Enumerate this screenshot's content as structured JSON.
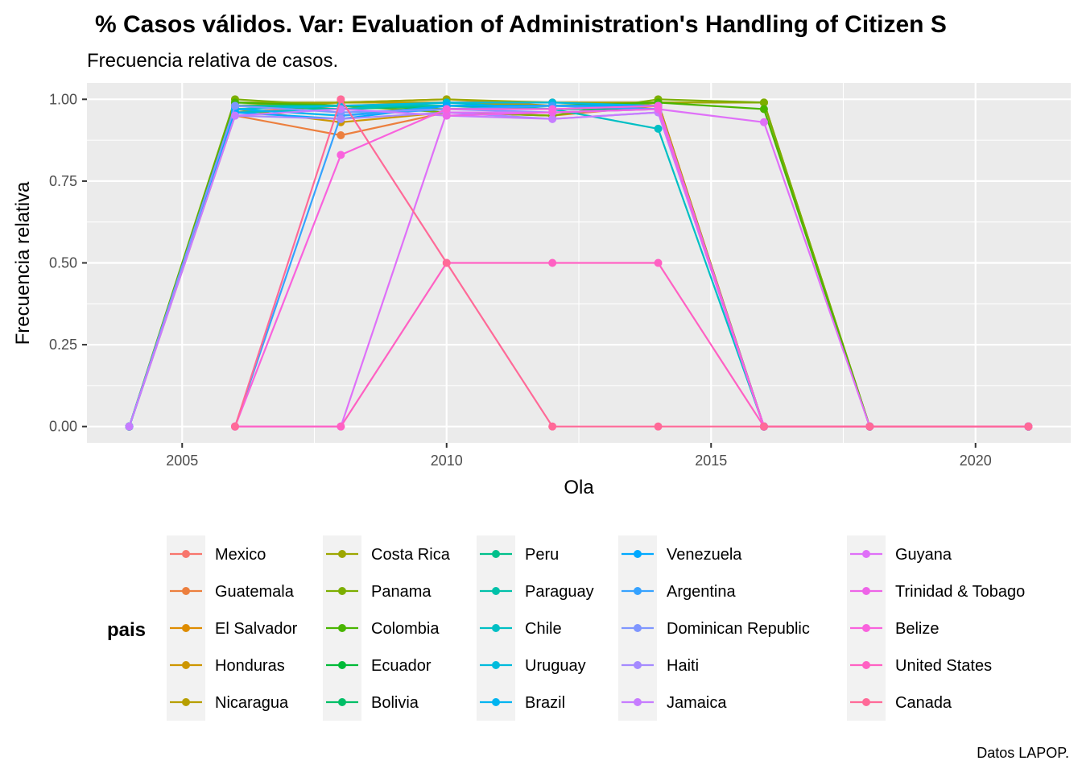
{
  "chart_data": {
    "type": "line",
    "title": "% Casos válidos. Var: Evaluation of Administration's Handling of Citizen S",
    "subtitle": "Frecuencia relativa de casos.",
    "xlabel": "Ola",
    "ylabel": "Frecuencia relativa",
    "caption": "Datos LAPOP.",
    "xlim": [
      2003.2,
      2021.8
    ],
    "ylim": [
      -0.05,
      1.05
    ],
    "x_ticks": [
      2005,
      2010,
      2015,
      2020
    ],
    "x_tick_labels": [
      "2005",
      "2010",
      "2015",
      "2020"
    ],
    "y_ticks": [
      0,
      0.25,
      0.5,
      0.75,
      1.0
    ],
    "y_tick_labels": [
      "0.00",
      "0.25",
      "0.50",
      "0.75",
      "1.00"
    ],
    "grid": true,
    "legend": {
      "title": "pais",
      "position": "bottom",
      "columns": 5,
      "rows": 5
    },
    "series": [
      {
        "name": "Mexico",
        "color": "#F8766D",
        "x": [
          2004,
          2006,
          2008,
          2010,
          2012,
          2014,
          2016,
          2018,
          2021
        ],
        "y": [
          0,
          0.96,
          0.98,
          0.99,
          0.99,
          0.99,
          0,
          0,
          0
        ]
      },
      {
        "name": "Guatemala",
        "color": "#EC7F3E",
        "x": [
          2004,
          2006,
          2008,
          2010,
          2012,
          2014,
          2016,
          2018,
          2021
        ],
        "y": [
          0,
          0.95,
          0.89,
          0.96,
          0.95,
          0.98,
          0,
          0,
          0
        ]
      },
      {
        "name": "El Salvador",
        "color": "#DE8C00",
        "x": [
          2004,
          2006,
          2008,
          2010,
          2012,
          2014,
          2016,
          2018,
          2021
        ],
        "y": [
          0,
          0.98,
          0.99,
          1.0,
          0.98,
          0.99,
          0,
          0,
          0
        ]
      },
      {
        "name": "Honduras",
        "color": "#CD9600",
        "x": [
          2004,
          2006,
          2008,
          2010,
          2012,
          2014,
          2016,
          2018,
          2021
        ],
        "y": [
          0,
          0.97,
          0.93,
          0.96,
          0.95,
          0.99,
          0,
          0,
          0
        ]
      },
      {
        "name": "Nicaragua",
        "color": "#B79F00",
        "x": [
          2004,
          2006,
          2008,
          2010,
          2012,
          2014,
          2016,
          2018,
          2021
        ],
        "y": [
          0,
          0.98,
          0.99,
          0.99,
          0.98,
          0.99,
          0.99,
          0,
          0
        ]
      },
      {
        "name": "Costa Rica",
        "color": "#9DA700",
        "x": [
          2004,
          2006,
          2008,
          2010,
          2012,
          2014,
          2016,
          2018,
          2021
        ],
        "y": [
          0,
          0.99,
          0.99,
          1.0,
          0.99,
          0.99,
          0.99,
          0,
          0
        ]
      },
      {
        "name": "Panama",
        "color": "#7CAE00",
        "x": [
          2004,
          2006,
          2008,
          2010,
          2012,
          2014,
          2016,
          2018,
          2021
        ],
        "y": [
          0,
          1.0,
          0.98,
          0.96,
          0.95,
          1.0,
          0.99,
          0,
          0
        ]
      },
      {
        "name": "Colombia",
        "color": "#49B500",
        "x": [
          2004,
          2006,
          2008,
          2010,
          2012,
          2014,
          2016,
          2018,
          2021
        ],
        "y": [
          0,
          0.99,
          0.98,
          0.97,
          0.98,
          0.99,
          0.97,
          0,
          0
        ]
      },
      {
        "name": "Ecuador",
        "color": "#00BA38",
        "x": [
          2004,
          2006,
          2008,
          2010,
          2012,
          2014,
          2016,
          2018,
          2021
        ],
        "y": [
          0,
          0.98,
          0.97,
          0.98,
          0.98,
          0.98,
          0,
          0,
          0
        ]
      },
      {
        "name": "Bolivia",
        "color": "#00BE67",
        "x": [
          2004,
          2006,
          2008,
          2010,
          2012,
          2014,
          2016,
          2018,
          2021
        ],
        "y": [
          0,
          0.97,
          0.98,
          0.98,
          0.98,
          0.98,
          0,
          0,
          0
        ]
      },
      {
        "name": "Peru",
        "color": "#00C08B",
        "x": [
          2004,
          2006,
          2008,
          2010,
          2012,
          2014,
          2016,
          2018,
          2021
        ],
        "y": [
          0,
          0.98,
          0.97,
          0.98,
          0.97,
          0.97,
          0,
          0,
          0
        ]
      },
      {
        "name": "Paraguay",
        "color": "#00C1A9",
        "x": [
          2004,
          2006,
          2008,
          2010,
          2012,
          2014,
          2016,
          2018,
          2021
        ],
        "y": [
          0,
          0.98,
          0.98,
          0.98,
          0.98,
          0.97,
          0,
          0,
          0
        ]
      },
      {
        "name": "Chile",
        "color": "#00BFC4",
        "x": [
          2004,
          2006,
          2008,
          2010,
          2012,
          2014,
          2016,
          2018,
          2021
        ],
        "y": [
          0,
          0.96,
          0.97,
          0.99,
          0.97,
          0.91,
          0,
          0,
          0
        ]
      },
      {
        "name": "Uruguay",
        "color": "#00BBDC",
        "x": [
          2004,
          2006,
          2008,
          2010,
          2012,
          2014,
          2016,
          2018,
          2021
        ],
        "y": [
          0,
          0.97,
          0.98,
          0.99,
          0.99,
          0.98,
          0,
          0,
          0
        ]
      },
      {
        "name": "Brazil",
        "color": "#00B4F0",
        "x": [
          2004,
          2006,
          2008,
          2010,
          2012,
          2014,
          2016,
          2018,
          2021
        ],
        "y": [
          0,
          0.97,
          0.95,
          0.98,
          0.98,
          0.98,
          0,
          0,
          0
        ]
      },
      {
        "name": "Venezuela",
        "color": "#00A9FF",
        "x": [
          2004,
          2006,
          2008,
          2010,
          2012,
          2014,
          2016,
          2018,
          2021
        ],
        "y": [
          0,
          0.96,
          0.94,
          0.98,
          0.98,
          0.98,
          0,
          0,
          0
        ]
      },
      {
        "name": "Argentina",
        "color": "#35A2FF",
        "x": [
          2006,
          2008,
          2010,
          2012,
          2014,
          2016,
          2018,
          2021
        ],
        "y": [
          0,
          0.95,
          0.97,
          0.98,
          0.97,
          0,
          0,
          0
        ]
      },
      {
        "name": "Dominican Republic",
        "color": "#7F96FF",
        "x": [
          2004,
          2006,
          2008,
          2010,
          2012,
          2014,
          2016,
          2018,
          2021
        ],
        "y": [
          0,
          0.98,
          0.96,
          0.97,
          0.96,
          0.97,
          0,
          0,
          0
        ]
      },
      {
        "name": "Haiti",
        "color": "#A58AFF",
        "x": [
          2006,
          2008,
          2010,
          2012,
          2014,
          2016,
          2018,
          2021
        ],
        "y": [
          0.95,
          0.94,
          0.96,
          0.94,
          0.96,
          0,
          0,
          0
        ]
      },
      {
        "name": "Jamaica",
        "color": "#C77CFF",
        "x": [
          2004,
          2006,
          2008,
          2010,
          2012,
          2014,
          2016,
          2018,
          2021
        ],
        "y": [
          0,
          0.95,
          0.97,
          0.95,
          0.94,
          0.96,
          0,
          0,
          0
        ]
      },
      {
        "name": "Guyana",
        "color": "#DF70F8",
        "x": [
          2006,
          2008,
          2010,
          2012,
          2014,
          2016,
          2018,
          2021
        ],
        "y": [
          0,
          0,
          0.96,
          0.96,
          0.97,
          0.93,
          0,
          0
        ]
      },
      {
        "name": "Trinidad & Tobago",
        "color": "#EE64E8",
        "x": [
          2010,
          2012,
          2014,
          2016,
          2018,
          2021
        ],
        "y": [
          0.95,
          0.96,
          0.97,
          0,
          0,
          0
        ]
      },
      {
        "name": "Belize",
        "color": "#F962DD",
        "x": [
          2006,
          2008,
          2010,
          2012,
          2014,
          2016,
          2018,
          2021
        ],
        "y": [
          0,
          0.83,
          0.97,
          0.97,
          0.98,
          0,
          0,
          0
        ]
      },
      {
        "name": "United States",
        "color": "#FF61C3",
        "x": [
          2006,
          2008,
          2010,
          2012,
          2014,
          2016,
          2018,
          2021
        ],
        "y": [
          0,
          0,
          0.5,
          0.5,
          0.5,
          0,
          0,
          0
        ]
      },
      {
        "name": "Canada",
        "color": "#FF6A98",
        "x": [
          2006,
          2008,
          2010,
          2012,
          2014,
          2016,
          2018,
          2021
        ],
        "y": [
          0,
          1.0,
          0.5,
          0,
          0,
          0,
          0,
          0
        ]
      }
    ]
  }
}
